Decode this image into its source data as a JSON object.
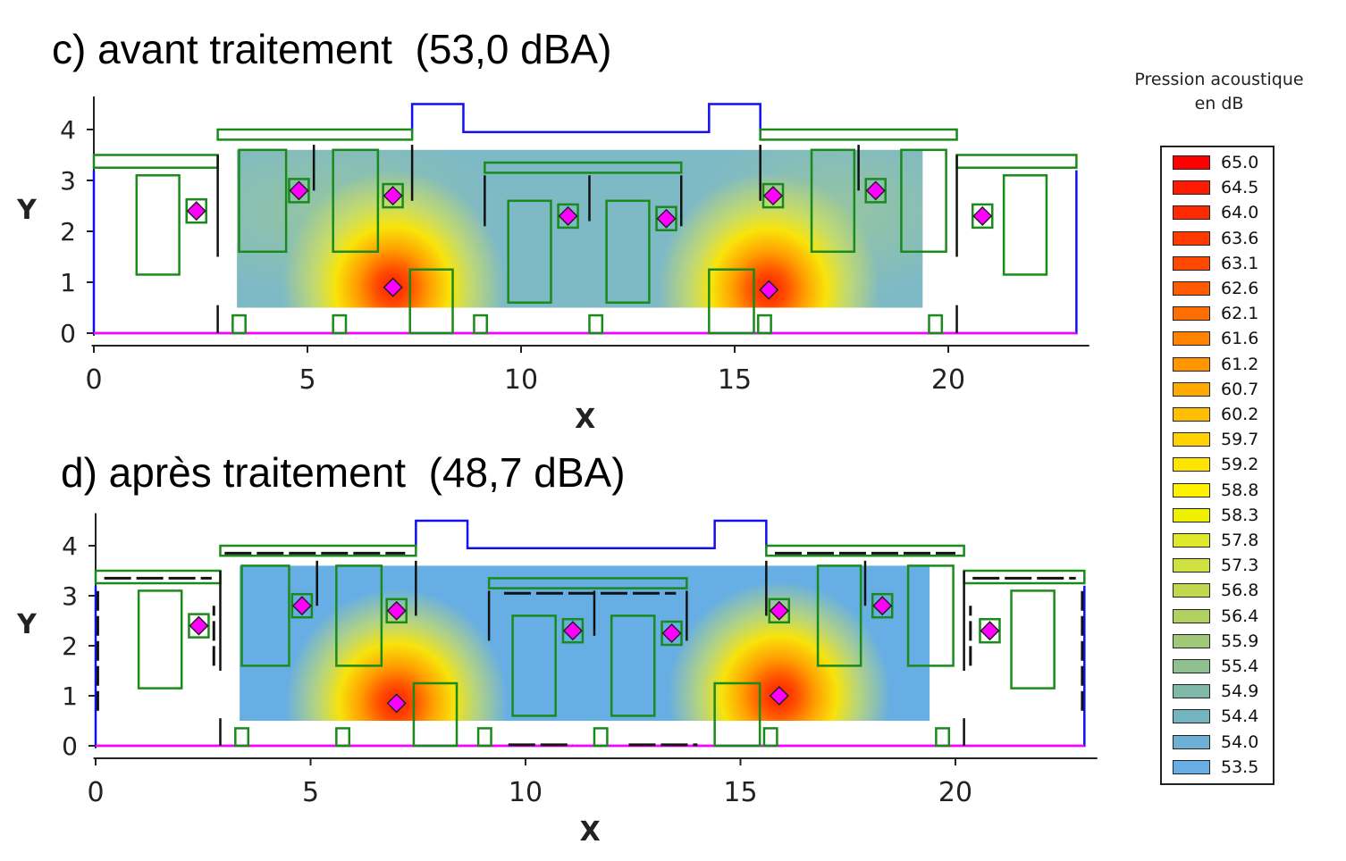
{
  "panels": {
    "c": {
      "title": "c) avant traitement  (53,0 dBA)"
    },
    "d": {
      "title": "d) après traitement  (48,7 dBA)"
    }
  },
  "legend": {
    "title_line1": "Pression acoustique",
    "title_line2": "en dB",
    "items": [
      {
        "label": "65.0",
        "color": "#ff0000"
      },
      {
        "label": "64.5",
        "color": "#ff1a00"
      },
      {
        "label": "64.0",
        "color": "#ff2a00"
      },
      {
        "label": "63.6",
        "color": "#ff3a00"
      },
      {
        "label": "63.1",
        "color": "#ff4800"
      },
      {
        "label": "62.6",
        "color": "#ff5a00"
      },
      {
        "label": "62.1",
        "color": "#ff6e00"
      },
      {
        "label": "61.6",
        "color": "#ff8200"
      },
      {
        "label": "61.2",
        "color": "#ff9600"
      },
      {
        "label": "60.7",
        "color": "#ffaa00"
      },
      {
        "label": "60.2",
        "color": "#ffbe00"
      },
      {
        "label": "59.7",
        "color": "#ffd200"
      },
      {
        "label": "59.2",
        "color": "#ffe400"
      },
      {
        "label": "58.8",
        "color": "#fff200"
      },
      {
        "label": "58.3",
        "color": "#eef000"
      },
      {
        "label": "57.8",
        "color": "#dfe82a"
      },
      {
        "label": "57.3",
        "color": "#d0e040"
      },
      {
        "label": "56.8",
        "color": "#c0d850"
      },
      {
        "label": "56.4",
        "color": "#b0d060"
      },
      {
        "label": "55.9",
        "color": "#a0c878"
      },
      {
        "label": "55.4",
        "color": "#90c090"
      },
      {
        "label": "54.9",
        "color": "#80b8a8"
      },
      {
        "label": "54.4",
        "color": "#74b4c0"
      },
      {
        "label": "54.0",
        "color": "#6eb0d4"
      },
      {
        "label": "53.5",
        "color": "#66aee4"
      }
    ]
  },
  "chart_data": [
    {
      "type": "heatmap",
      "title": "c) avant traitement  (53,0 dBA)",
      "xlabel": "X",
      "ylabel": "Y",
      "xlim": [
        0,
        23
      ],
      "ylim": [
        0,
        4.7
      ],
      "xticks": [
        0,
        5,
        10,
        15,
        20
      ],
      "yticks": [
        0,
        1,
        2,
        3,
        4
      ],
      "base_color": "#7eb9c6",
      "sources": [
        {
          "x": 7.0,
          "y": 0.9
        },
        {
          "x": 15.8,
          "y": 0.85
        }
      ],
      "receivers": [
        {
          "x": 2.4,
          "y": 2.4
        },
        {
          "x": 4.8,
          "y": 2.8
        },
        {
          "x": 7.0,
          "y": 2.7
        },
        {
          "x": 11.1,
          "y": 2.3
        },
        {
          "x": 13.4,
          "y": 2.25
        },
        {
          "x": 15.9,
          "y": 2.7
        },
        {
          "x": 18.3,
          "y": 2.8
        },
        {
          "x": 20.8,
          "y": 2.3
        }
      ]
    },
    {
      "type": "heatmap",
      "title": "d) après traitement  (48,7 dBA)",
      "xlabel": "X",
      "ylabel": "Y",
      "xlim": [
        0,
        23
      ],
      "ylim": [
        0,
        4.7
      ],
      "xticks": [
        0,
        5,
        10,
        15,
        20
      ],
      "yticks": [
        0,
        1,
        2,
        3,
        4
      ],
      "base_color": "#66aee4",
      "sources": [
        {
          "x": 7.0,
          "y": 0.85
        },
        {
          "x": 15.9,
          "y": 1.0
        }
      ],
      "receivers": [
        {
          "x": 2.4,
          "y": 2.4
        },
        {
          "x": 4.8,
          "y": 2.8
        },
        {
          "x": 7.0,
          "y": 2.7
        },
        {
          "x": 11.1,
          "y": 2.3
        },
        {
          "x": 13.4,
          "y": 2.25
        },
        {
          "x": 15.9,
          "y": 2.7
        },
        {
          "x": 18.3,
          "y": 2.8
        },
        {
          "x": 20.8,
          "y": 2.3
        }
      ]
    }
  ]
}
